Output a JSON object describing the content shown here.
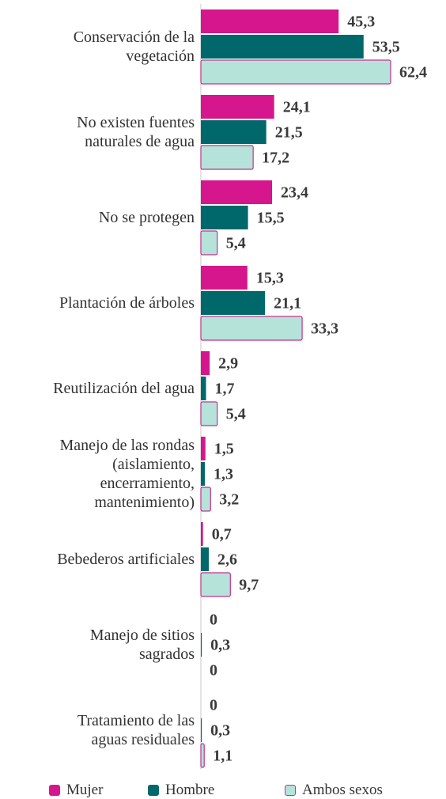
{
  "chart_data": {
    "type": "bar",
    "orientation": "horizontal",
    "categories": [
      "Conservación de la\nvegetación",
      "No existen fuentes\nnaturales de agua",
      "No se protegen",
      "Plantación de árboles",
      "Reutilización del agua",
      "Manejo de las rondas\n(aislamiento,\nencerramiento,\nmantenimiento)",
      "Bebederos artificiales",
      "Manejo de sitios\nsagrados",
      "Tratamiento de las\naguas residuales"
    ],
    "series": [
      {
        "name": "Mujer",
        "color": "#d6168c",
        "values": [
          45.3,
          24.1,
          23.4,
          15.3,
          2.9,
          1.5,
          0.7,
          0,
          0
        ],
        "value_labels": [
          "45,3",
          "24,1",
          "23,4",
          "15,3",
          "2,9",
          "1,5",
          "0,7",
          "0",
          "0"
        ]
      },
      {
        "name": "Hombre",
        "color": "#00676b",
        "values": [
          53.5,
          21.5,
          15.5,
          21.1,
          1.7,
          1.3,
          2.6,
          0.3,
          0.3
        ],
        "value_labels": [
          "53,5",
          "21,5",
          "15,5",
          "21,1",
          "1,7",
          "1,3",
          "2,6",
          "0,3",
          "0,3"
        ]
      },
      {
        "name": "Ambos sexos",
        "color": "#b5e3da",
        "values": [
          62.4,
          17.2,
          5.4,
          33.3,
          5.4,
          3.2,
          9.7,
          0,
          1.1
        ],
        "value_labels": [
          "62,4",
          "17,2",
          "5,4",
          "33,3",
          "5,4",
          "3,2",
          "9,7",
          "0",
          "1,1"
        ]
      }
    ],
    "legend": "bottom"
  }
}
